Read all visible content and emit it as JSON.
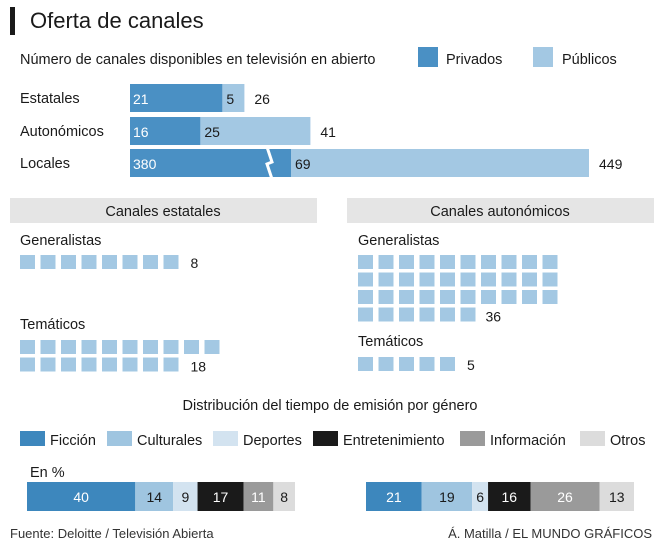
{
  "title": "Oferta de canales",
  "colors": {
    "privados": "#4a90c4",
    "publicos": "#a3c8e3",
    "square": "#a3c8e3",
    "panel": "#e5e5e5",
    "ficcion": "#3d87bd",
    "culturales": "#9fc5e0",
    "deportes": "#d3e3f0",
    "entretenimiento": "#1a1a1a",
    "informacion": "#9a9a9a",
    "otros": "#dcdcdc"
  },
  "legend_top": {
    "label": "Número de canales disponibles en televisión en abierto",
    "privados": "Privados",
    "publicos": "Públicos"
  },
  "panels": {
    "estatales": "Canales estatales",
    "autonomicos": "Canales autonómicos"
  },
  "section_distribution": "Distribución del tiempo de emisión por género",
  "en_pct": "En %",
  "footer": {
    "source": "Fuente: Deloitte / Televisión Abierta",
    "credit": "Á. Matilla / EL MUNDO GRÁFICOS"
  },
  "chart_data": [
    {
      "type": "bar",
      "stacked": true,
      "title": "Número de canales disponibles en televisión en abierto",
      "categories": [
        "Estatales",
        "Autonómicos",
        "Locales"
      ],
      "series": [
        {
          "name": "Privados",
          "values": [
            21,
            16,
            380
          ]
        },
        {
          "name": "Públicos",
          "values": [
            5,
            25,
            69
          ]
        }
      ],
      "totals": [
        26,
        41,
        449
      ],
      "axis_break": "Locales"
    },
    {
      "type": "pictogram",
      "title": "Canales estatales",
      "categories": [
        "Generalistas",
        "Temáticos"
      ],
      "values": [
        8,
        18
      ]
    },
    {
      "type": "pictogram",
      "title": "Canales autonómicos",
      "categories": [
        "Generalistas",
        "Temáticos"
      ],
      "values": [
        36,
        5
      ]
    },
    {
      "type": "bar",
      "stacked": true,
      "percent": true,
      "title": "Distribución del tiempo de emisión por género",
      "subtitle": "En %",
      "series_names": [
        "Ficción",
        "Culturales",
        "Deportes",
        "Entretenimiento",
        "Información",
        "Otros"
      ],
      "bars": [
        {
          "values": [
            40,
            14,
            9,
            17,
            11,
            8
          ]
        },
        {
          "values": [
            21,
            19,
            6,
            16,
            26,
            13
          ]
        }
      ]
    }
  ]
}
